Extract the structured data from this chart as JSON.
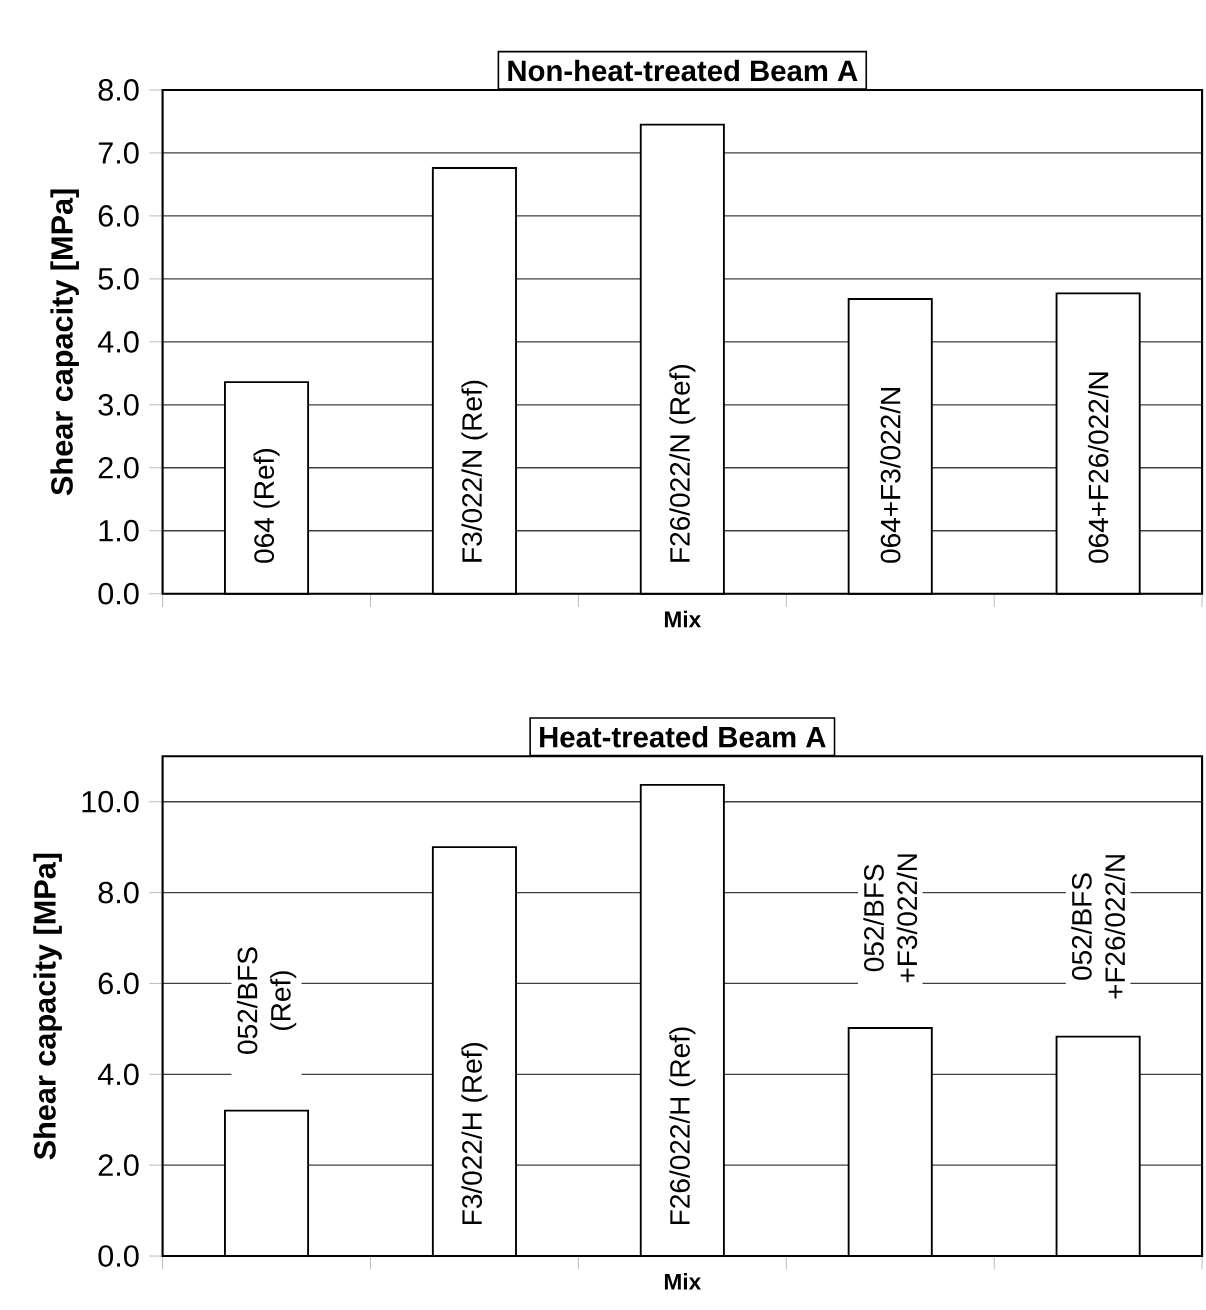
{
  "chart_data": [
    {
      "type": "bar",
      "title": "Non-heat-treated Beam A",
      "xlabel": "Mix",
      "ylabel": "Shear capacity [MPa]",
      "categories": [
        "064 (Ref)",
        "F3/022/N (Ref)",
        "F26/022/N (Ref)",
        "064+F3/022/N",
        "064+F26/022/N"
      ],
      "values": [
        3.36,
        6.76,
        7.45,
        4.68,
        4.77
      ],
      "color": "#ffffff",
      "ylim": [
        0,
        8
      ],
      "yticks": [
        {
          "value": 0,
          "label": "0.0"
        },
        {
          "value": 1,
          "label": "1.0"
        },
        {
          "value": 2,
          "label": "2.0"
        },
        {
          "value": 3,
          "label": "3.0"
        },
        {
          "value": 4,
          "label": "4.0"
        },
        {
          "value": 5,
          "label": "5.0"
        },
        {
          "value": 6,
          "label": "6.0"
        },
        {
          "value": 7,
          "label": "7.0"
        },
        {
          "value": 8,
          "label": "8.0"
        }
      ],
      "grid": "y"
    },
    {
      "type": "bar",
      "title": "Heat-treated Beam A",
      "xlabel": "Mix",
      "ylabel": "Shear capacity [MPa]",
      "categories": [
        "052/BFS (Ref)",
        "F3/022/H (Ref)",
        "F26/022/H (Ref)",
        "052/BFS +F3/022/N",
        "052/BFS +F26/022/N"
      ],
      "values": [
        3.2,
        9.0,
        10.37,
        5.02,
        4.83
      ],
      "color": "#ffffff",
      "ylim": [
        0,
        11
      ],
      "yticks": [
        {
          "value": 0,
          "label": "0.0"
        },
        {
          "value": 2,
          "label": "2.0"
        },
        {
          "value": 4,
          "label": "4.0"
        },
        {
          "value": 6,
          "label": "6.0"
        },
        {
          "value": 8,
          "label": "8.0"
        },
        {
          "value": 10,
          "label": "10.0"
        }
      ],
      "grid": "y"
    }
  ]
}
